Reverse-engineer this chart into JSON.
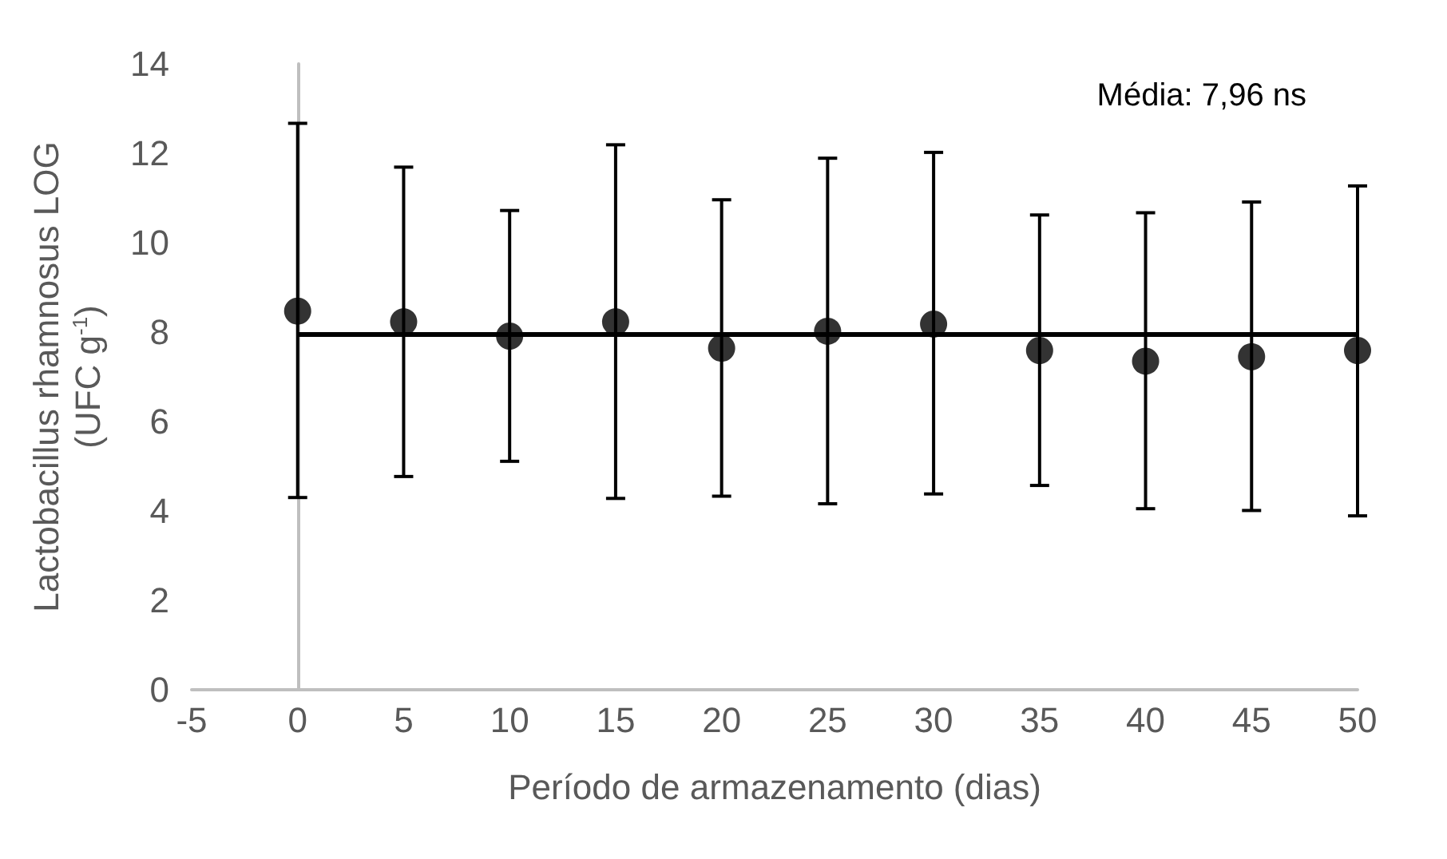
{
  "chart_data": {
    "type": "scatter",
    "xlabel": "Período de armazenamento (dias)",
    "ylabel": "Lactobacillus rhamnosus LOG\n(UFC g$^{-1}$)",
    "x": [
      0,
      5,
      10,
      15,
      20,
      25,
      30,
      35,
      40,
      45,
      50
    ],
    "series": [
      {
        "color": "#000000",
        "values": [
          8.47,
          8.23,
          7.91,
          8.23,
          7.64,
          8.02,
          8.18,
          7.59,
          7.35,
          7.45,
          7.59
        ],
        "errors": [
          [
            4.3,
            12.67
          ],
          [
            4.77,
            11.69
          ],
          [
            5.11,
            10.72
          ],
          [
            4.28,
            12.19
          ],
          [
            4.33,
            10.96
          ],
          [
            4.16,
            11.89
          ],
          [
            4.38,
            12.02
          ],
          [
            4.57,
            10.62
          ],
          [
            4.05,
            10.67
          ],
          [
            4.01,
            10.91
          ],
          [
            3.89,
            11.27
          ]
        ]
      }
    ],
    "marker": "circle",
    "ref_lines": [
      {
        "axis": "y",
        "value": 7.96,
        "label": "Média: 7,96 ns",
        "color": "#000000"
      }
    ],
    "xlim": [
      -5,
      50
    ],
    "xticks": [
      -5,
      0,
      5,
      10,
      15,
      20,
      25,
      30,
      35,
      40,
      45,
      50
    ],
    "ylim": [
      0,
      14
    ],
    "yticks": [
      0,
      2,
      4,
      6,
      8,
      10,
      12,
      14
    ]
  }
}
